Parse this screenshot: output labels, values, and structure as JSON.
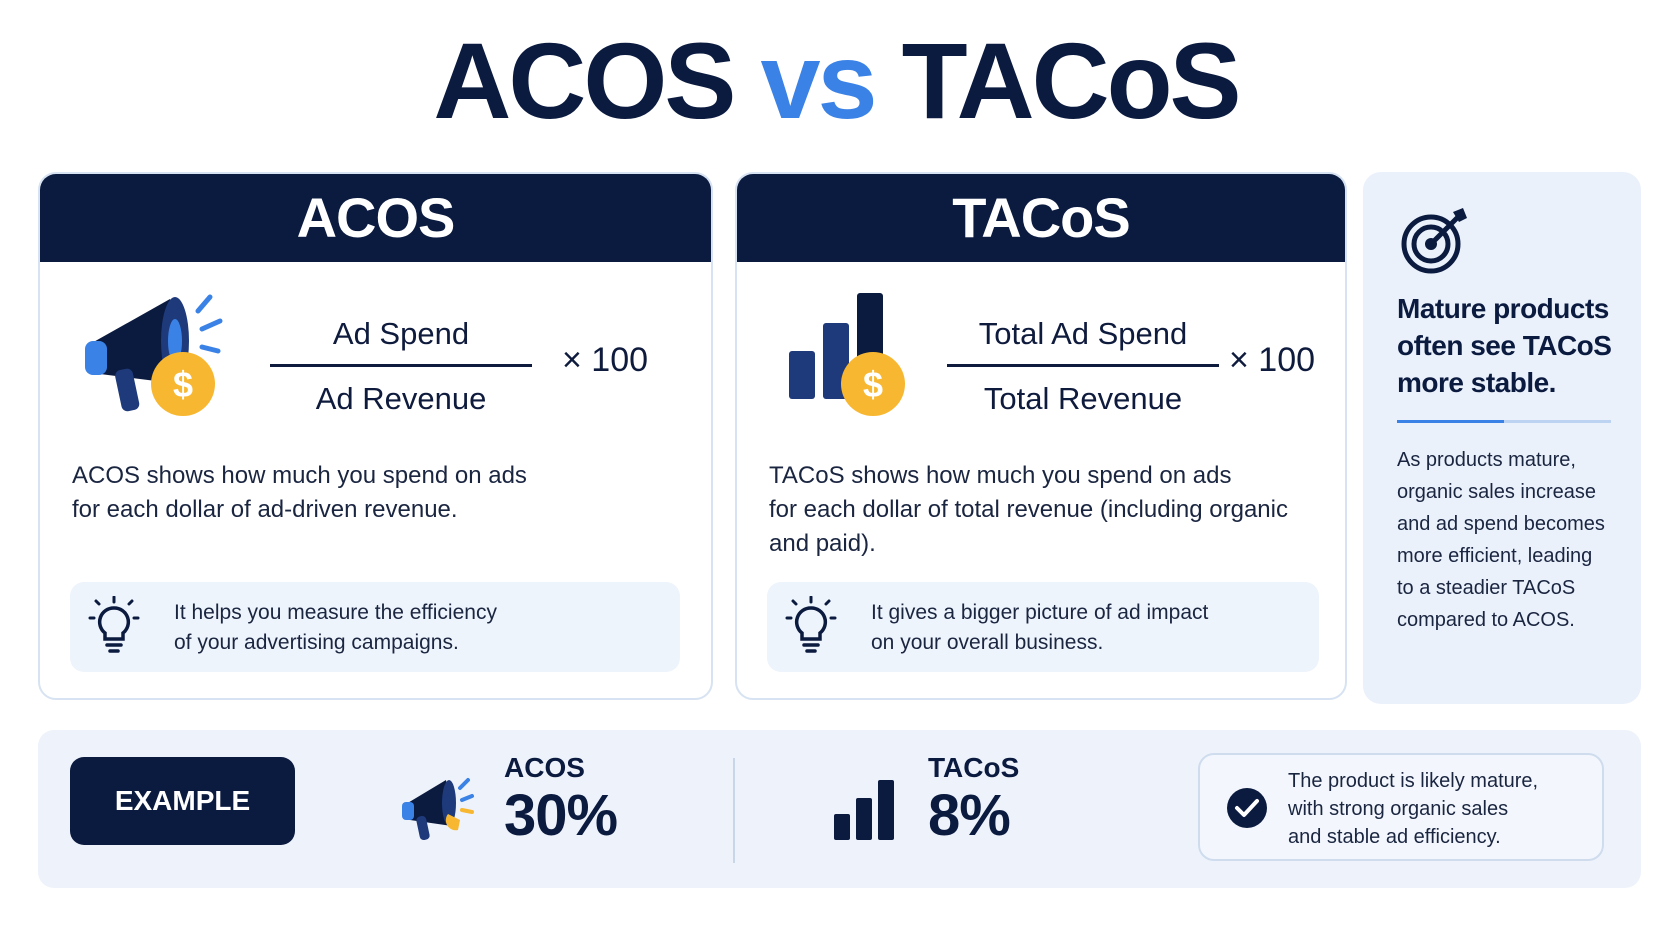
{
  "title": {
    "left": "ACOS",
    "middle": "vs",
    "right": "TACoS"
  },
  "acos": {
    "header": "ACOS",
    "numerator": "Ad Spend",
    "denominator": "Ad Revenue",
    "multiplier": "× 100",
    "description_line1": "ACOS shows how much you spend on ads",
    "description_line2": "for each dollar of ad-driven revenue.",
    "tip_line1": "It helps you measure the efficiency",
    "tip_line2": "of your advertising campaigns.",
    "icon": "megaphone-dollar-icon"
  },
  "tacos": {
    "header": "TACoS",
    "numerator": "Total Ad Spend",
    "denominator": "Total Revenue",
    "multiplier": "× 100",
    "description_line1": "TACoS shows how much you spend on ads",
    "description_line2": "for each dollar of total revenue (including organic",
    "description_line3": "and paid).",
    "tip_line1": "It gives a bigger picture of ad impact",
    "tip_line2": "on your overall business.",
    "icon": "bar-chart-dollar-icon"
  },
  "side": {
    "heading_line1": "Mature products",
    "heading_line2": "often see TACoS",
    "heading_line3": "more stable.",
    "text_line1": "As products mature,",
    "text_line2": "organic sales increase",
    "text_line3": "and ad spend becomes",
    "text_line4": "more efficient, leading",
    "text_line5": "to a steadier TACoS",
    "text_line6": "compared to ACOS.",
    "icon": "target-icon"
  },
  "example": {
    "label": "EXAMPLE",
    "acos_label": "ACOS",
    "acos_value": "30%",
    "tacos_label": "TACoS",
    "tacos_value": "8%",
    "note_line1": "The product is likely mature,",
    "note_line2": "with strong organic sales",
    "note_line3": "and stable ad efficiency."
  },
  "colors": {
    "navy": "#0b1a3f",
    "accent_blue": "#3b82e6",
    "gold": "#f7b731",
    "panel_bg": "#eaf1fb"
  }
}
